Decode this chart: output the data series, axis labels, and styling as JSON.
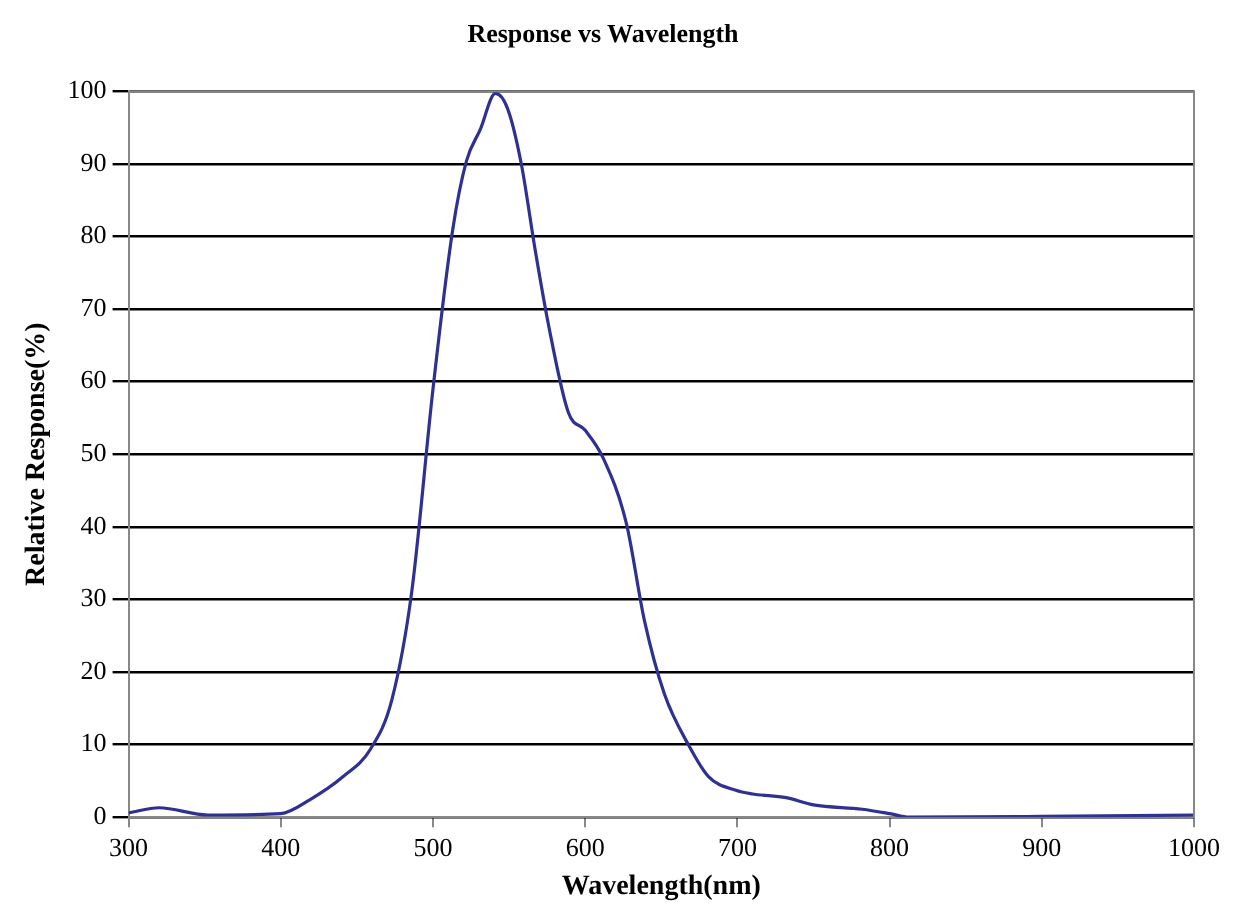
{
  "chart_data": {
    "type": "line",
    "title": "Response vs Wavelength",
    "xlabel": "Wavelength(nm)",
    "ylabel": "Relative Response(%)",
    "xlim": [
      300,
      1000
    ],
    "xticks": [
      300,
      400,
      500,
      600,
      700,
      800,
      900,
      1000
    ],
    "ylim": [
      0,
      100
    ],
    "yticks": [
      0,
      10,
      20,
      30,
      40,
      50,
      60,
      70,
      80,
      90,
      100
    ],
    "grid": "y",
    "legend": false,
    "marker": "none",
    "series": [
      {
        "color": "#2e3192",
        "x": [
          300,
          320,
          352,
          400,
          419,
          441,
          459,
          473,
          486,
          500,
          513,
          522,
          531,
          541,
          549,
          558,
          567,
          576,
          589,
          600,
          612,
          627,
          639,
          652,
          668,
          681,
          699,
          710,
          732,
          750,
          782,
          800,
          813,
          900,
          1000
        ],
        "values": [
          0.6,
          1.3,
          0.3,
          0.5,
          2.4,
          5.6,
          9.4,
          16.2,
          31,
          59,
          81,
          90.4,
          94.7,
          99.7,
          97.6,
          90,
          78.3,
          67.7,
          55.7,
          53.3,
          49.4,
          40.5,
          27,
          17,
          9.9,
          5.6,
          3.7,
          3.2,
          2.7,
          1.7,
          1.1,
          0.5,
          0,
          0.1,
          0.3
        ]
      }
    ]
  }
}
